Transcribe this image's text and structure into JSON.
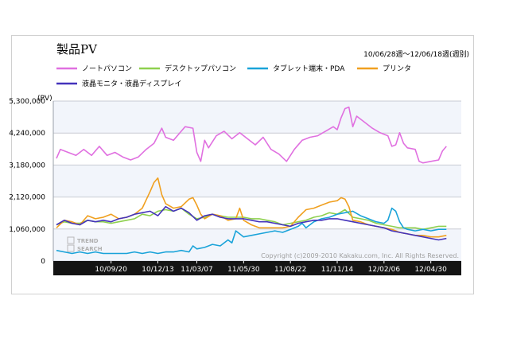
{
  "chart_data": {
    "type": "line",
    "title": "製品PV",
    "period": "10/06/28週〜12/06/18週(週別)",
    "yunit": "(PV)",
    "ylim": [
      0,
      5300000
    ],
    "yticks": [
      {
        "value": 5300000,
        "label": "5,300,000"
      },
      {
        "value": 4240000,
        "label": "4,240,000"
      },
      {
        "value": 3180000,
        "label": "3,180,000"
      },
      {
        "value": 2120000,
        "label": "2,120,000"
      },
      {
        "value": 1060000,
        "label": "1,060,000"
      },
      {
        "value": 0,
        "label": "0"
      }
    ],
    "xlim": [
      0,
      103
    ],
    "xticks": [
      {
        "week": 14,
        "label": "10/09/20"
      },
      {
        "week": 26,
        "label": "10/12/13"
      },
      {
        "week": 36,
        "label": "11/03/07"
      },
      {
        "week": 48,
        "label": "11/05/30"
      },
      {
        "week": 60,
        "label": "11/08/22"
      },
      {
        "week": 72,
        "label": "11/11/14"
      },
      {
        "week": 84,
        "label": "12/02/06"
      },
      {
        "week": 96,
        "label": "12/04/30"
      }
    ],
    "grid": true,
    "legend_position": "top",
    "copyright": "Copyright (c)2009-2010 Kakaku.com, Inc. All Rights Reserved.",
    "watermark": [
      "TREND",
      "SEARCH"
    ],
    "series": [
      {
        "name": "ノートパソコン",
        "color": "#e070e0",
        "points": [
          [
            0,
            3400000
          ],
          [
            1,
            3700000
          ],
          [
            3,
            3600000
          ],
          [
            5,
            3500000
          ],
          [
            7,
            3700000
          ],
          [
            9,
            3500000
          ],
          [
            11,
            3800000
          ],
          [
            13,
            3500000
          ],
          [
            15,
            3600000
          ],
          [
            17,
            3450000
          ],
          [
            19,
            3350000
          ],
          [
            21,
            3450000
          ],
          [
            23,
            3700000
          ],
          [
            25,
            3900000
          ],
          [
            27,
            4400000
          ],
          [
            28,
            4100000
          ],
          [
            30,
            4000000
          ],
          [
            32,
            4300000
          ],
          [
            33,
            4450000
          ],
          [
            35,
            4400000
          ],
          [
            36,
            3600000
          ],
          [
            37,
            3300000
          ],
          [
            38,
            4000000
          ],
          [
            39,
            3750000
          ],
          [
            41,
            4150000
          ],
          [
            43,
            4300000
          ],
          [
            45,
            4050000
          ],
          [
            47,
            4250000
          ],
          [
            49,
            4050000
          ],
          [
            51,
            3850000
          ],
          [
            53,
            4100000
          ],
          [
            55,
            3700000
          ],
          [
            57,
            3550000
          ],
          [
            59,
            3300000
          ],
          [
            60,
            3500000
          ],
          [
            61,
            3700000
          ],
          [
            63,
            4000000
          ],
          [
            65,
            4100000
          ],
          [
            67,
            4150000
          ],
          [
            69,
            4300000
          ],
          [
            71,
            4450000
          ],
          [
            72,
            4350000
          ],
          [
            73,
            4750000
          ],
          [
            74,
            5050000
          ],
          [
            75,
            5100000
          ],
          [
            76,
            4450000
          ],
          [
            77,
            4800000
          ],
          [
            79,
            4600000
          ],
          [
            81,
            4400000
          ],
          [
            83,
            4250000
          ],
          [
            85,
            4150000
          ],
          [
            86,
            3800000
          ],
          [
            87,
            3850000
          ],
          [
            88,
            4250000
          ],
          [
            89,
            3900000
          ],
          [
            90,
            3750000
          ],
          [
            92,
            3700000
          ],
          [
            93,
            3300000
          ],
          [
            94,
            3250000
          ],
          [
            96,
            3300000
          ],
          [
            98,
            3350000
          ],
          [
            99,
            3650000
          ],
          [
            100,
            3800000
          ]
        ]
      },
      {
        "name": "デスクトップパソコン",
        "color": "#8ed04e",
        "points": [
          [
            0,
            1200000
          ],
          [
            2,
            1300000
          ],
          [
            4,
            1250000
          ],
          [
            6,
            1250000
          ],
          [
            8,
            1350000
          ],
          [
            10,
            1300000
          ],
          [
            12,
            1300000
          ],
          [
            14,
            1250000
          ],
          [
            16,
            1300000
          ],
          [
            18,
            1350000
          ],
          [
            20,
            1400000
          ],
          [
            22,
            1550000
          ],
          [
            24,
            1500000
          ],
          [
            26,
            1650000
          ],
          [
            28,
            1700000
          ],
          [
            30,
            1650000
          ],
          [
            32,
            1750000
          ],
          [
            34,
            1550000
          ],
          [
            36,
            1400000
          ],
          [
            38,
            1450000
          ],
          [
            40,
            1550000
          ],
          [
            42,
            1500000
          ],
          [
            44,
            1450000
          ],
          [
            46,
            1450000
          ],
          [
            48,
            1450000
          ],
          [
            50,
            1400000
          ],
          [
            52,
            1400000
          ],
          [
            54,
            1350000
          ],
          [
            56,
            1300000
          ],
          [
            58,
            1200000
          ],
          [
            60,
            1250000
          ],
          [
            62,
            1300000
          ],
          [
            64,
            1350000
          ],
          [
            66,
            1450000
          ],
          [
            68,
            1500000
          ],
          [
            70,
            1600000
          ],
          [
            72,
            1550000
          ],
          [
            74,
            1700000
          ],
          [
            76,
            1450000
          ],
          [
            78,
            1400000
          ],
          [
            80,
            1350000
          ],
          [
            82,
            1250000
          ],
          [
            84,
            1200000
          ],
          [
            86,
            1150000
          ],
          [
            88,
            1100000
          ],
          [
            90,
            1100000
          ],
          [
            92,
            1100000
          ],
          [
            94,
            1050000
          ],
          [
            96,
            1100000
          ],
          [
            98,
            1150000
          ],
          [
            100,
            1150000
          ]
        ]
      },
      {
        "name": "タブレット端末・PDA",
        "color": "#1aa3d9",
        "points": [
          [
            0,
            350000
          ],
          [
            2,
            300000
          ],
          [
            4,
            250000
          ],
          [
            6,
            300000
          ],
          [
            8,
            250000
          ],
          [
            10,
            300000
          ],
          [
            12,
            250000
          ],
          [
            14,
            250000
          ],
          [
            16,
            250000
          ],
          [
            18,
            250000
          ],
          [
            20,
            300000
          ],
          [
            22,
            250000
          ],
          [
            24,
            300000
          ],
          [
            26,
            250000
          ],
          [
            28,
            300000
          ],
          [
            30,
            300000
          ],
          [
            32,
            350000
          ],
          [
            34,
            300000
          ],
          [
            35,
            500000
          ],
          [
            36,
            400000
          ],
          [
            38,
            450000
          ],
          [
            40,
            550000
          ],
          [
            42,
            500000
          ],
          [
            44,
            700000
          ],
          [
            45,
            600000
          ],
          [
            46,
            1000000
          ],
          [
            47,
            900000
          ],
          [
            48,
            800000
          ],
          [
            50,
            850000
          ],
          [
            52,
            900000
          ],
          [
            54,
            950000
          ],
          [
            56,
            1000000
          ],
          [
            58,
            950000
          ],
          [
            60,
            1050000
          ],
          [
            62,
            1150000
          ],
          [
            63,
            1250000
          ],
          [
            64,
            1100000
          ],
          [
            66,
            1300000
          ],
          [
            68,
            1400000
          ],
          [
            70,
            1450000
          ],
          [
            72,
            1550000
          ],
          [
            74,
            1600000
          ],
          [
            76,
            1650000
          ],
          [
            78,
            1500000
          ],
          [
            80,
            1400000
          ],
          [
            82,
            1300000
          ],
          [
            84,
            1250000
          ],
          [
            85,
            1350000
          ],
          [
            86,
            1750000
          ],
          [
            87,
            1650000
          ],
          [
            88,
            1300000
          ],
          [
            89,
            1100000
          ],
          [
            90,
            1050000
          ],
          [
            92,
            1000000
          ],
          [
            94,
            1050000
          ],
          [
            96,
            1000000
          ],
          [
            98,
            1050000
          ],
          [
            100,
            1050000
          ]
        ]
      },
      {
        "name": "プリンタ",
        "color": "#f0a020",
        "points": [
          [
            0,
            1100000
          ],
          [
            2,
            1350000
          ],
          [
            4,
            1300000
          ],
          [
            6,
            1200000
          ],
          [
            8,
            1500000
          ],
          [
            10,
            1400000
          ],
          [
            12,
            1450000
          ],
          [
            14,
            1550000
          ],
          [
            16,
            1400000
          ],
          [
            18,
            1450000
          ],
          [
            20,
            1550000
          ],
          [
            22,
            1750000
          ],
          [
            24,
            2300000
          ],
          [
            25,
            2600000
          ],
          [
            26,
            2750000
          ],
          [
            27,
            2200000
          ],
          [
            28,
            1900000
          ],
          [
            30,
            1750000
          ],
          [
            32,
            1800000
          ],
          [
            34,
            2050000
          ],
          [
            35,
            2100000
          ],
          [
            36,
            1850000
          ],
          [
            37,
            1550000
          ],
          [
            38,
            1400000
          ],
          [
            40,
            1550000
          ],
          [
            42,
            1500000
          ],
          [
            44,
            1350000
          ],
          [
            46,
            1400000
          ],
          [
            47,
            1750000
          ],
          [
            48,
            1350000
          ],
          [
            50,
            1200000
          ],
          [
            52,
            1100000
          ],
          [
            54,
            1100000
          ],
          [
            56,
            1100000
          ],
          [
            58,
            1100000
          ],
          [
            60,
            1150000
          ],
          [
            62,
            1450000
          ],
          [
            64,
            1700000
          ],
          [
            66,
            1750000
          ],
          [
            68,
            1850000
          ],
          [
            70,
            1950000
          ],
          [
            72,
            2000000
          ],
          [
            73,
            2100000
          ],
          [
            74,
            2050000
          ],
          [
            75,
            1800000
          ],
          [
            76,
            1350000
          ],
          [
            78,
            1300000
          ],
          [
            80,
            1200000
          ],
          [
            82,
            1150000
          ],
          [
            84,
            1100000
          ],
          [
            86,
            1050000
          ],
          [
            88,
            950000
          ],
          [
            90,
            900000
          ],
          [
            92,
            850000
          ],
          [
            94,
            850000
          ],
          [
            96,
            800000
          ],
          [
            98,
            800000
          ],
          [
            100,
            850000
          ]
        ]
      },
      {
        "name": "液晶モニタ・液晶ディスプレイ",
        "color": "#4433bb",
        "points": [
          [
            0,
            1200000
          ],
          [
            2,
            1350000
          ],
          [
            4,
            1250000
          ],
          [
            6,
            1200000
          ],
          [
            8,
            1350000
          ],
          [
            10,
            1300000
          ],
          [
            12,
            1350000
          ],
          [
            14,
            1300000
          ],
          [
            16,
            1400000
          ],
          [
            18,
            1450000
          ],
          [
            20,
            1550000
          ],
          [
            22,
            1600000
          ],
          [
            24,
            1650000
          ],
          [
            26,
            1500000
          ],
          [
            28,
            1800000
          ],
          [
            30,
            1650000
          ],
          [
            32,
            1750000
          ],
          [
            34,
            1600000
          ],
          [
            36,
            1350000
          ],
          [
            38,
            1500000
          ],
          [
            40,
            1550000
          ],
          [
            42,
            1450000
          ],
          [
            44,
            1400000
          ],
          [
            46,
            1400000
          ],
          [
            48,
            1400000
          ],
          [
            50,
            1350000
          ],
          [
            52,
            1300000
          ],
          [
            54,
            1300000
          ],
          [
            56,
            1250000
          ],
          [
            58,
            1200000
          ],
          [
            60,
            1150000
          ],
          [
            62,
            1250000
          ],
          [
            64,
            1300000
          ],
          [
            66,
            1350000
          ],
          [
            68,
            1350000
          ],
          [
            70,
            1400000
          ],
          [
            72,
            1400000
          ],
          [
            74,
            1350000
          ],
          [
            76,
            1300000
          ],
          [
            78,
            1250000
          ],
          [
            80,
            1200000
          ],
          [
            82,
            1150000
          ],
          [
            84,
            1100000
          ],
          [
            86,
            1000000
          ],
          [
            88,
            950000
          ],
          [
            90,
            900000
          ],
          [
            92,
            850000
          ],
          [
            94,
            800000
          ],
          [
            96,
            750000
          ],
          [
            98,
            700000
          ],
          [
            100,
            750000
          ]
        ]
      }
    ]
  }
}
